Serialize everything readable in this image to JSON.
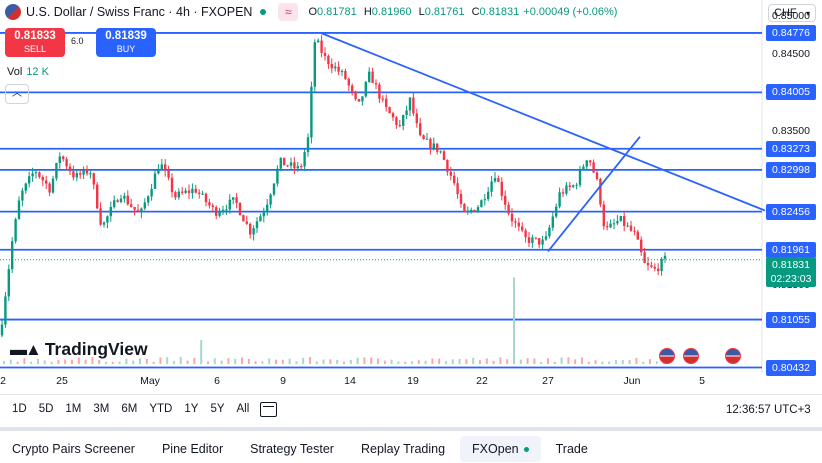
{
  "header": {
    "symbol": "U.S. Dollar / Swiss Franc · 4h · FXOPEN",
    "ohlc": [
      {
        "k": "O",
        "v": "0.81781"
      },
      {
        "k": "H",
        "v": "0.81960"
      },
      {
        "k": "L",
        "v": "0.81761"
      },
      {
        "k": "C",
        "v": "0.81831"
      }
    ],
    "change": "+0.00049 (+0.06%)",
    "currency": "CHF"
  },
  "trade": {
    "sell_price": "0.81833",
    "sell_label": "SELL",
    "spread": "6.0",
    "buy_price": "0.81839",
    "buy_label": "BUY"
  },
  "volume": {
    "label": "Vol",
    "value": "12 K"
  },
  "logo": "TradingView",
  "price_axis": {
    "ticks": [
      {
        "label": "0.85000",
        "value": 0.85
      },
      {
        "label": "0.84500",
        "value": 0.845
      },
      {
        "label": "0.83500",
        "value": 0.835
      },
      {
        "label": "0.81500",
        "value": 0.815
      }
    ],
    "levels": [
      {
        "label": "0.84776",
        "value": 0.84776
      },
      {
        "label": "0.84005",
        "value": 0.84005
      },
      {
        "label": "0.83273",
        "value": 0.83273
      },
      {
        "label": "0.82998",
        "value": 0.82998
      },
      {
        "label": "0.82456",
        "value": 0.82456
      },
      {
        "label": "0.81961",
        "value": 0.81961
      },
      {
        "label": "0.81055",
        "value": 0.81055
      },
      {
        "label": "0.80432",
        "value": 0.80432
      }
    ],
    "current": {
      "price": "0.81831",
      "countdown": "02:23:03"
    }
  },
  "time_axis": [
    "2",
    "25",
    "May",
    "6",
    "9",
    "14",
    "19",
    "22",
    "27",
    "Jun",
    "5"
  ],
  "timeframes": [
    "1D",
    "5D",
    "1M",
    "3M",
    "6M",
    "YTD",
    "1Y",
    "5Y",
    "All"
  ],
  "clock": "12:36:57 UTC+3",
  "bottom_tabs": [
    "Crypto Pairs Screener",
    "Pine Editor",
    "Strategy Tester",
    "Replay Trading",
    "FXOpen",
    "Trade"
  ],
  "colors": {
    "up": "#089981",
    "down": "#f23645",
    "level": "#2962ff"
  },
  "chart_data": {
    "type": "candlestick",
    "ylim": [
      0.804,
      0.851
    ],
    "price_levels": [
      0.84776,
      0.84005,
      0.83273,
      0.82998,
      0.82456,
      0.81961,
      0.81055,
      0.80432
    ],
    "trendlines": [
      {
        "from": [
          320,
          0.8478
        ],
        "to": [
          765,
          0.8247
        ]
      },
      {
        "from": [
          548,
          0.8194
        ],
        "to": [
          640,
          0.8343
        ]
      }
    ]
  }
}
